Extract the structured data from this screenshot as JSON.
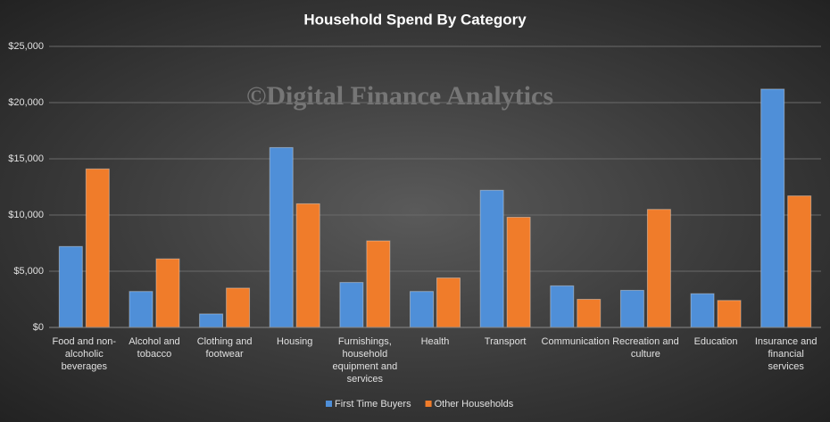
{
  "chart_data": {
    "type": "bar",
    "title": "Household  Spend By Category",
    "watermark": "©Digital Finance Analytics",
    "categories": [
      "Food and non-alcoholic beverages",
      "Alcohol and tobacco",
      "Clothing and footwear",
      "Housing",
      "Furnishings, household equipment and services",
      "Health",
      "Transport",
      "Communication",
      "Recreation and culture",
      "Education",
      "Insurance and financial services"
    ],
    "series": [
      {
        "name": "First Time Buyers",
        "color": "#4f8fd8",
        "values": [
          7200,
          3200,
          1200,
          16000,
          4000,
          3200,
          12200,
          3700,
          3300,
          3000,
          21200
        ]
      },
      {
        "name": "Other Households",
        "color": "#f07c2a",
        "values": [
          14100,
          6100,
          3500,
          11000,
          7700,
          4400,
          9800,
          2500,
          10500,
          2400,
          11700
        ]
      }
    ],
    "ylim": [
      0,
      25000
    ],
    "yticks": [
      {
        "value": 0,
        "label": "$0"
      },
      {
        "value": 5000,
        "label": "$5,000"
      },
      {
        "value": 10000,
        "label": "$10,000"
      },
      {
        "value": 15000,
        "label": "$15,000"
      },
      {
        "value": 20000,
        "label": "$20,000"
      },
      {
        "value": 25000,
        "label": "$25,000"
      }
    ],
    "grid": true,
    "legend": "bottom"
  }
}
